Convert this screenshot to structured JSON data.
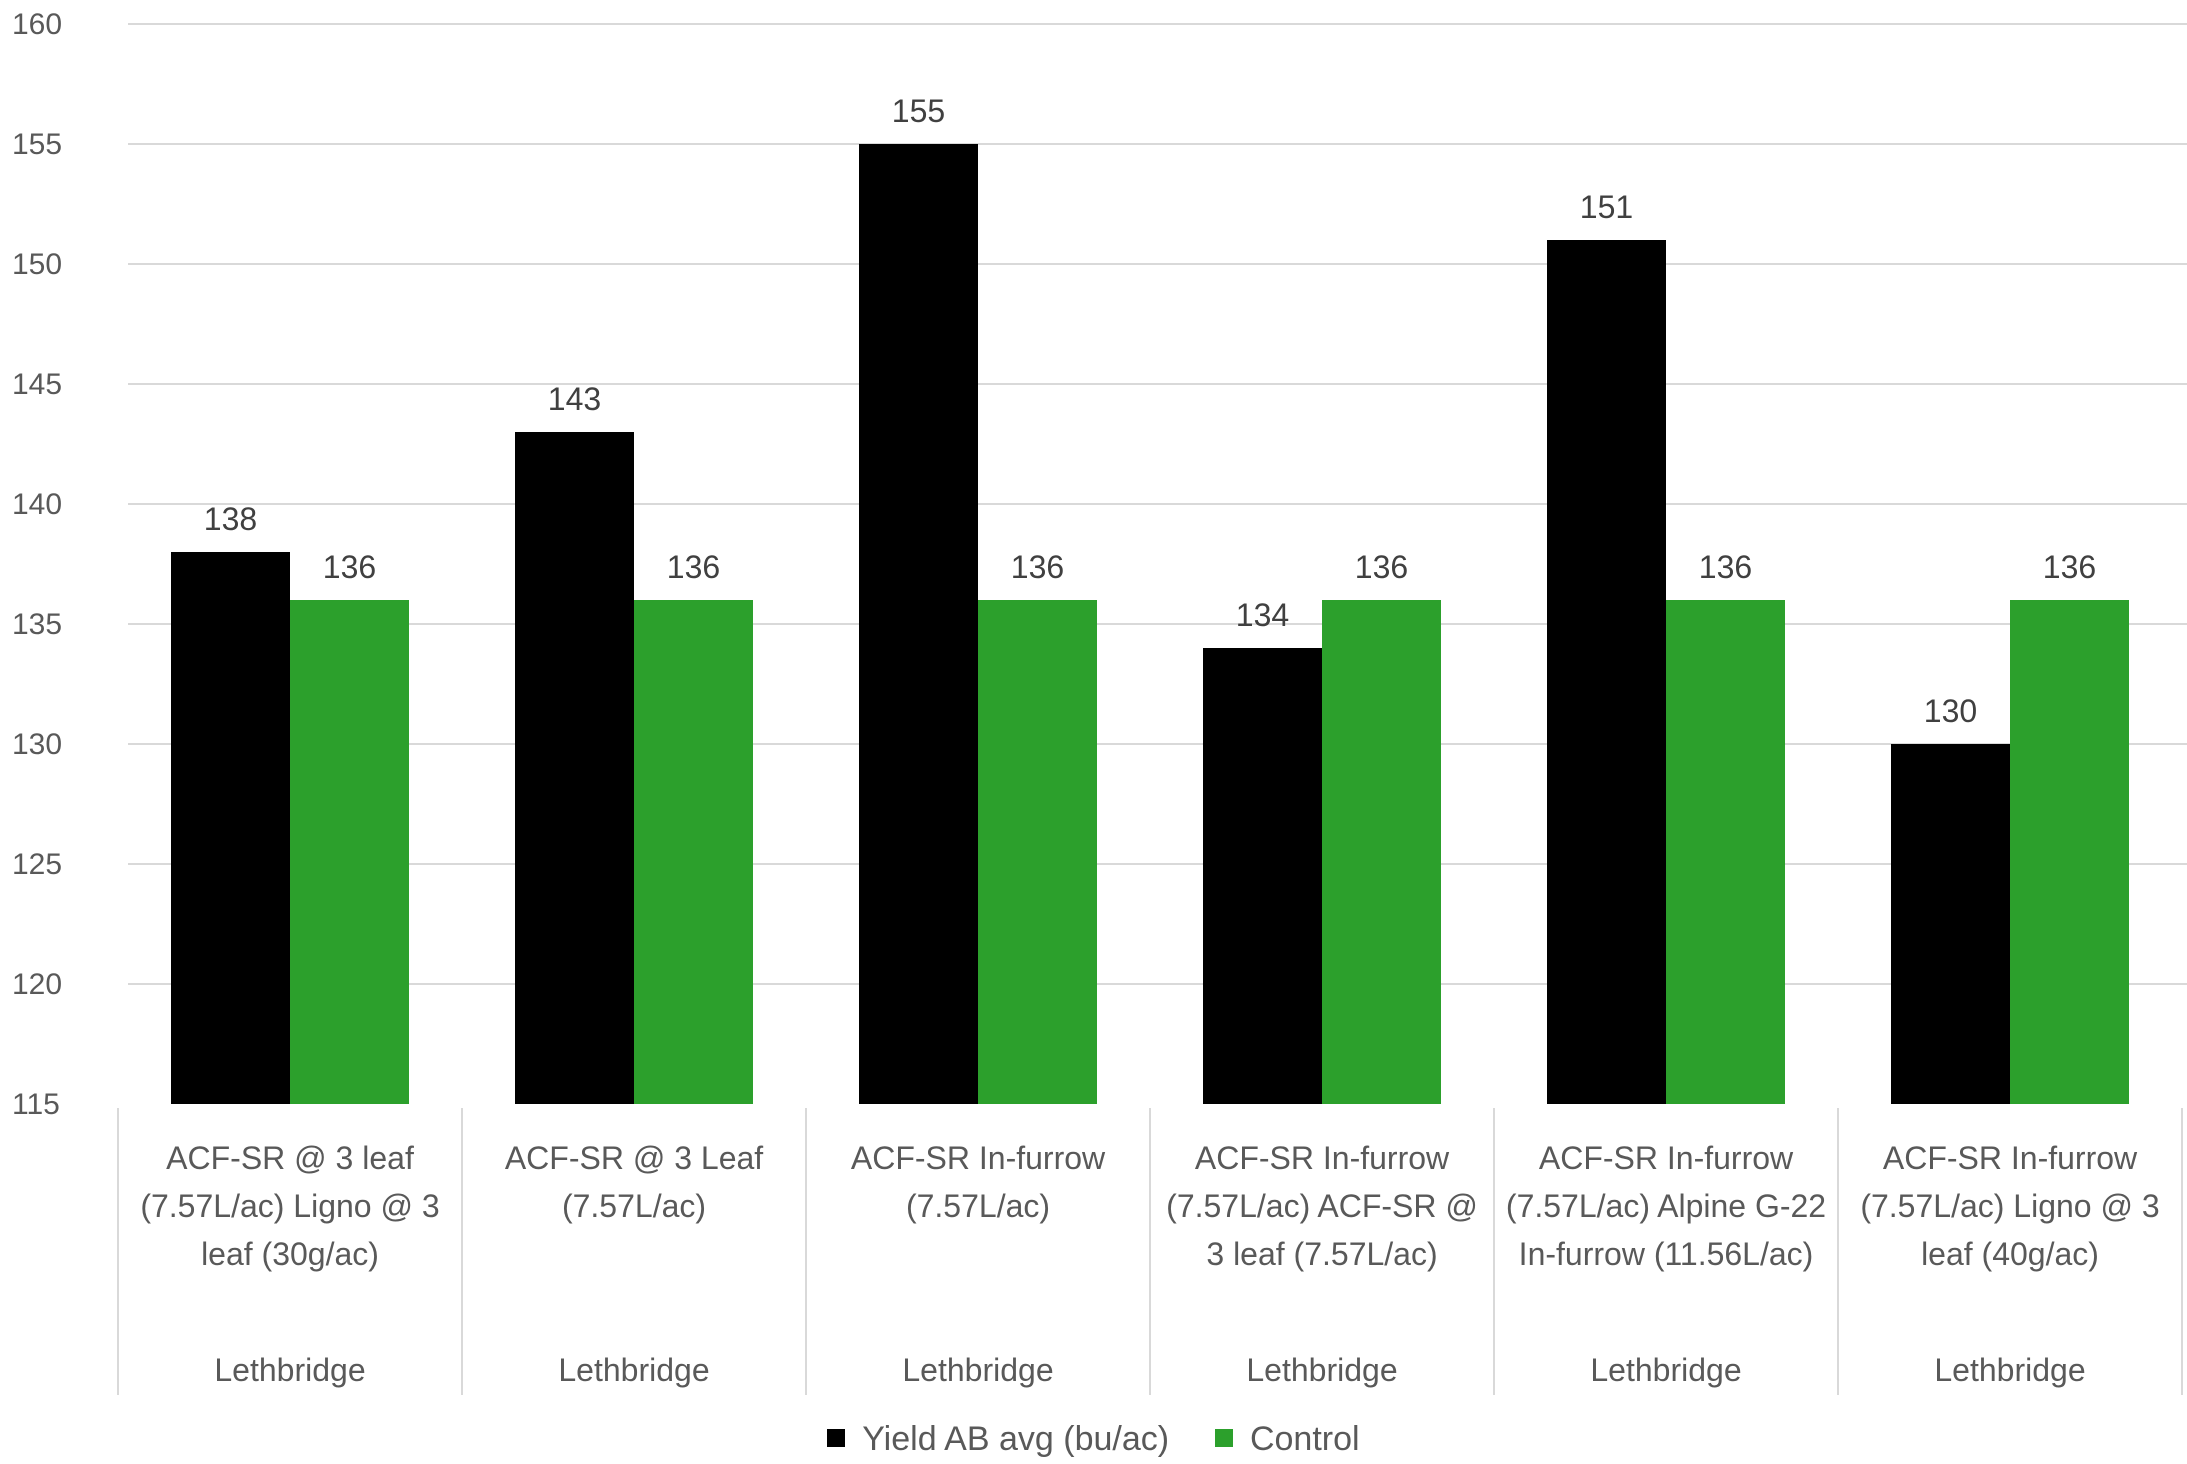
{
  "chart_data": {
    "type": "bar",
    "categories": [
      "ACF-SR @ 3 leaf (7.57L/ac) Ligno @ 3 leaf (30g/ac)",
      "ACF-SR @ 3 Leaf (7.57L/ac)",
      "ACF-SR In-furrow (7.57L/ac)",
      "ACF-SR In-furrow (7.57L/ac) ACF-SR @ 3 leaf (7.57L/ac)",
      "ACF-SR In-furrow (7.57L/ac) Alpine G-22 In-furrow (11.56L/ac)",
      "ACF-SR In-furrow (7.57L/ac) Ligno @ 3 leaf (40g/ac)"
    ],
    "groups": [
      "Lethbridge",
      "Lethbridge",
      "Lethbridge",
      "Lethbridge",
      "Lethbridge",
      "Lethbridge"
    ],
    "series": [
      {
        "name": "Yield AB avg (bu/ac)",
        "color": "#000000",
        "values": [
          138,
          143,
          155,
          134,
          151,
          130
        ]
      },
      {
        "name": "Control",
        "color": "#2ca02c",
        "values": [
          136,
          136,
          136,
          136,
          136,
          136
        ]
      }
    ],
    "ylim": [
      115,
      160
    ],
    "yticks": [
      115,
      120,
      125,
      130,
      135,
      140,
      145,
      150,
      155,
      160
    ],
    "grid": true,
    "data_labels": true,
    "legend_position": "bottom",
    "title": "",
    "xlabel": "",
    "ylabel": ""
  }
}
